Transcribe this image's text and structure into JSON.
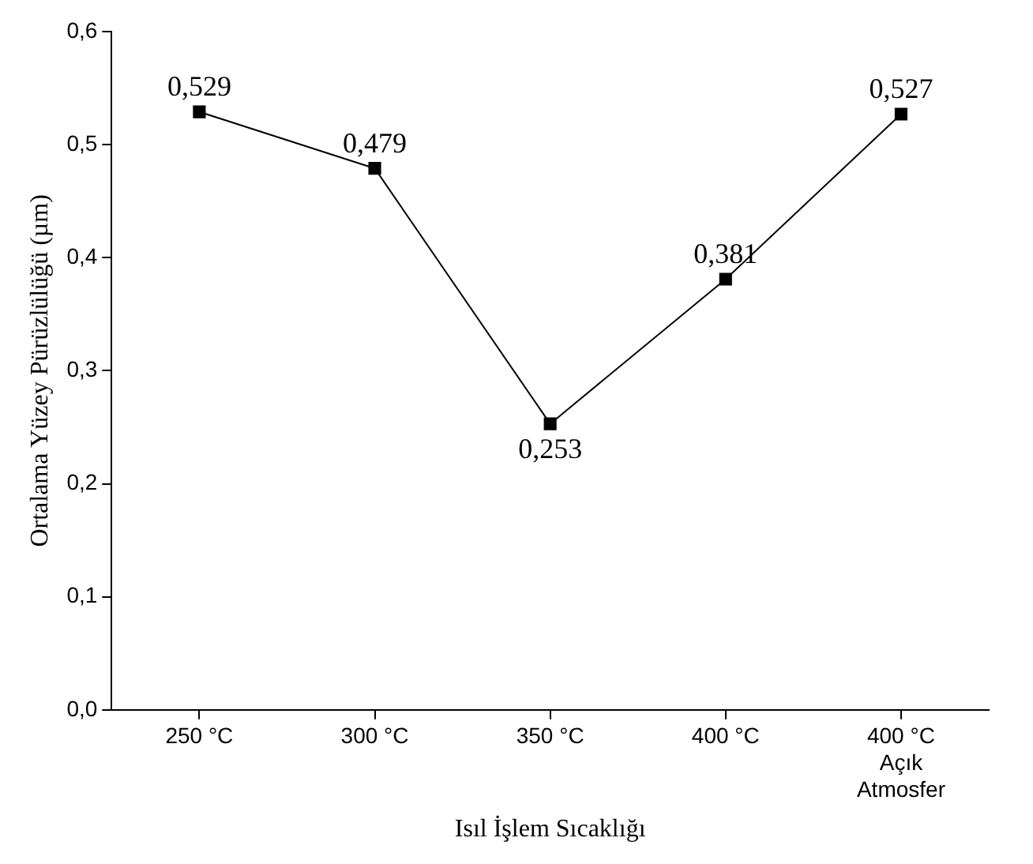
{
  "chart_data": {
    "type": "line",
    "xlabel": "Isıl İşlem Sıcaklığı",
    "ylabel": "Ortalama Yüzey Pürüzlülüğü (µm)",
    "categories": [
      "250 °C",
      "300 °C",
      "350 °C",
      "400 °C",
      "400 °C\nAçık\nAtmosfer"
    ],
    "series": [
      {
        "color": "#000000",
        "values": [
          0.529,
          0.479,
          0.253,
          0.381,
          0.527
        ],
        "value_labels": [
          "0,529",
          "0,479",
          "0,253",
          "0,381",
          "0,527"
        ]
      }
    ],
    "ylim": [
      0,
      0.6
    ],
    "yticks": [
      {
        "value": 0,
        "label": "0,0"
      },
      {
        "value": 0.1,
        "label": "0,1"
      },
      {
        "value": 0.2,
        "label": "0,2"
      },
      {
        "value": 0.3,
        "label": "0,3"
      },
      {
        "value": 0.4,
        "label": "0,4"
      },
      {
        "value": 0.5,
        "label": "0,5"
      },
      {
        "value": 0.6,
        "label": "0,6"
      }
    ],
    "grid": false,
    "legend": false,
    "marker": "square",
    "line_style": "solid"
  }
}
